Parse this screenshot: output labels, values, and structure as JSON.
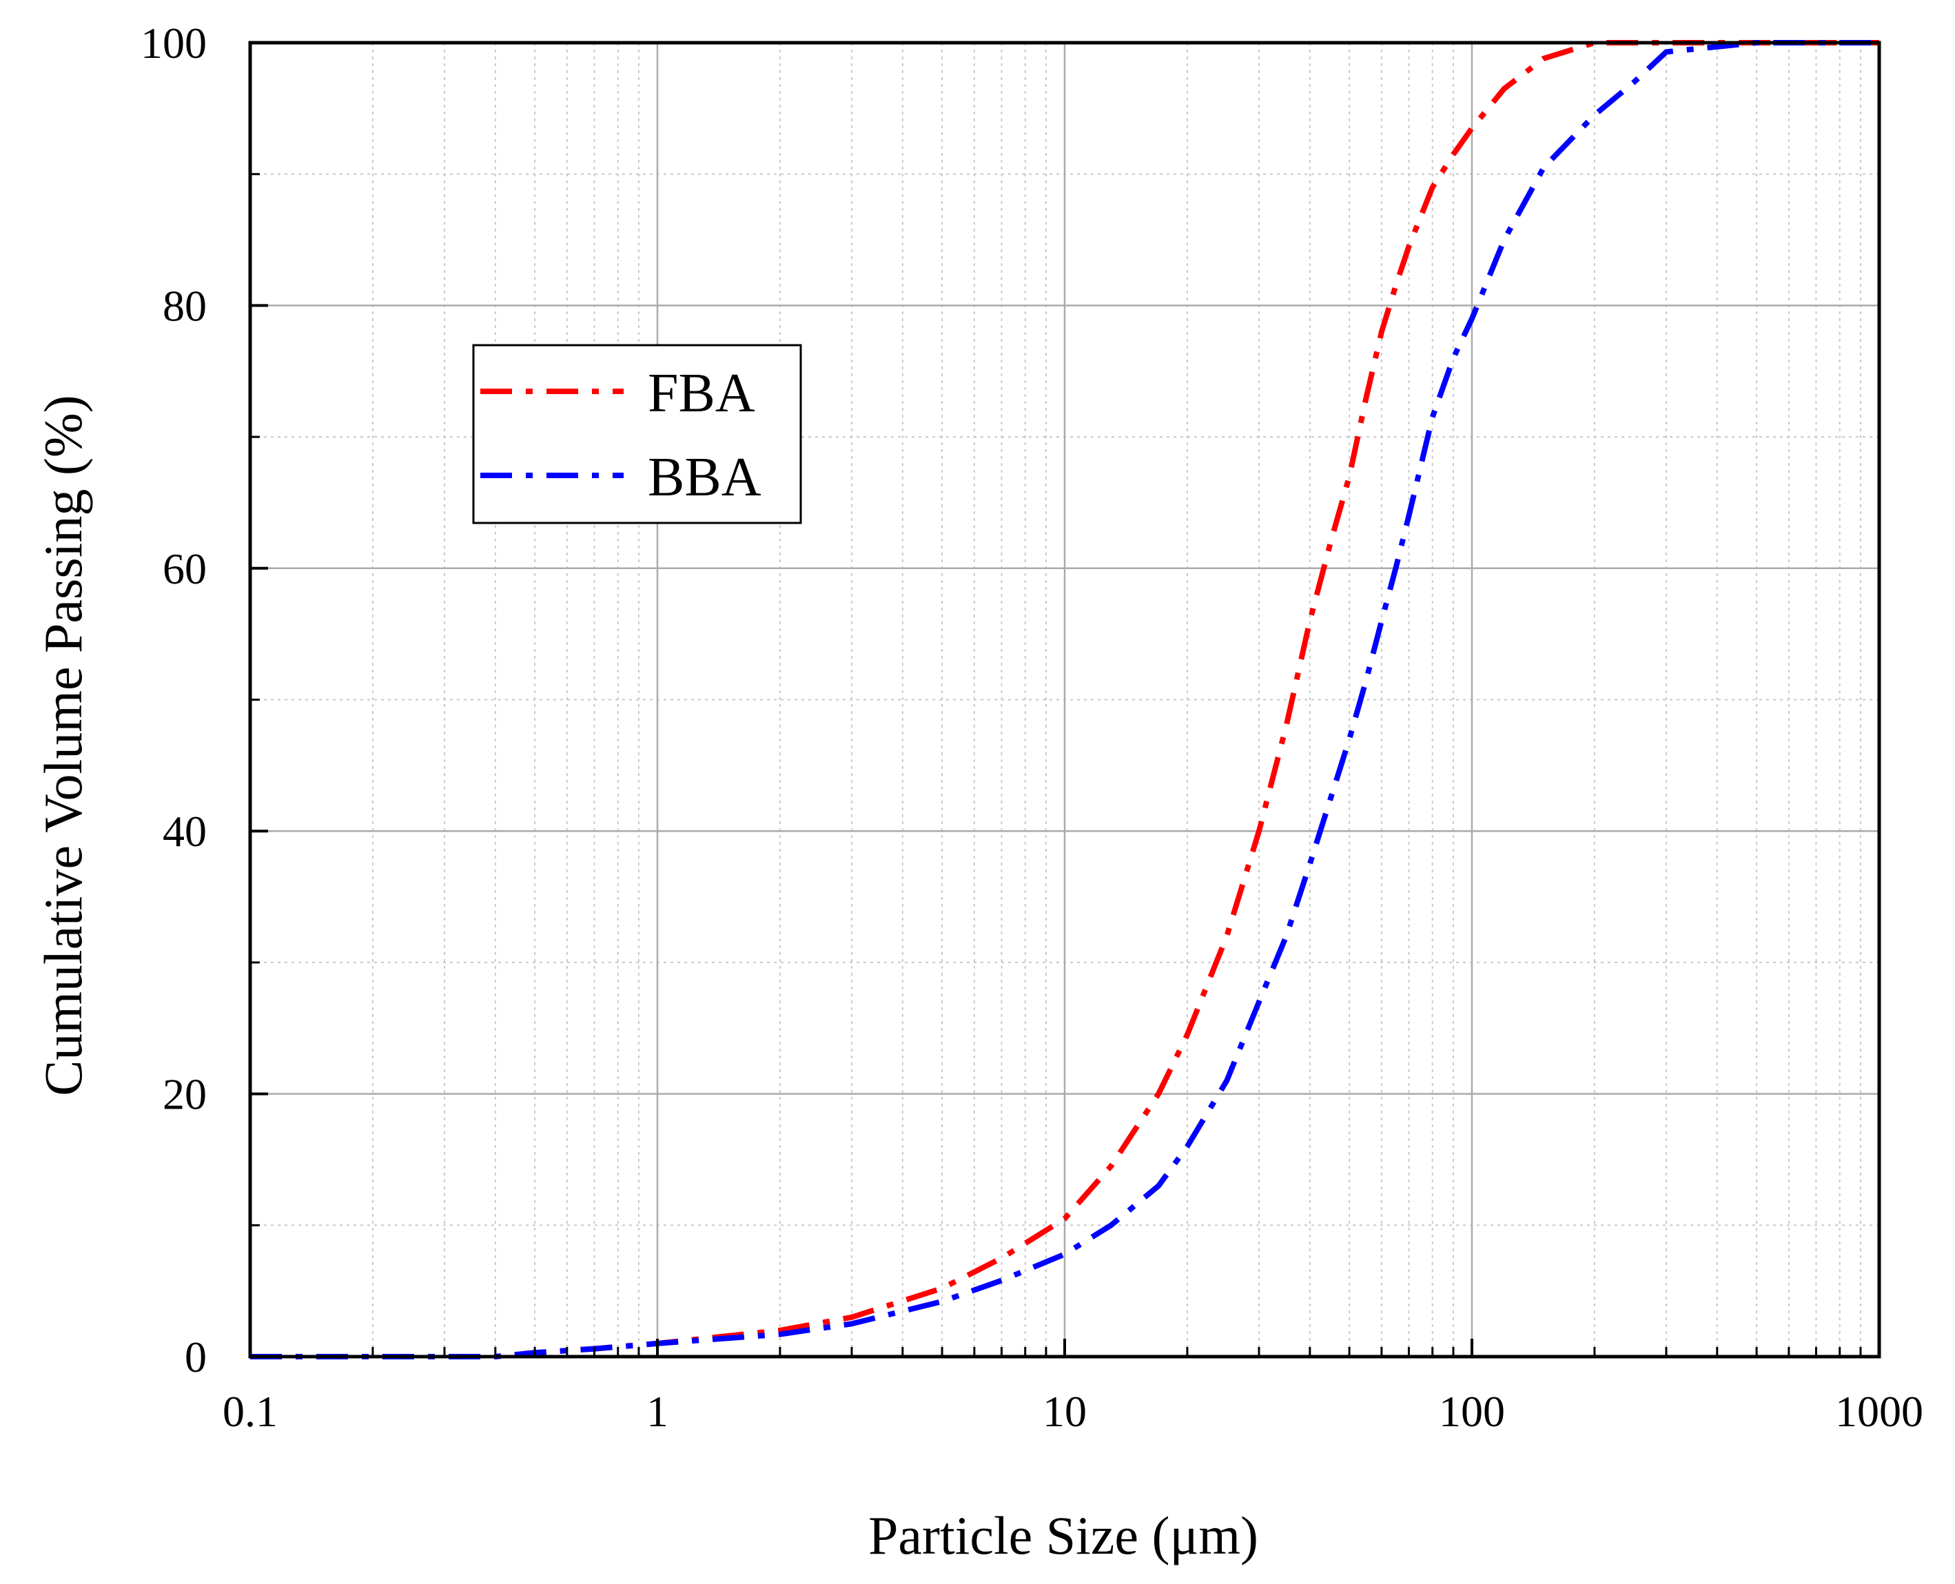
{
  "chart_data": {
    "type": "line",
    "title": "",
    "xlabel": "Particle Size (μm)",
    "ylabel": "Cumulative Volume Passing (%)",
    "xscale": "log",
    "xlim": [
      0.1,
      1000
    ],
    "ylim": [
      0,
      100
    ],
    "xticks": [
      0.1,
      1,
      10,
      100,
      1000
    ],
    "xtick_labels": [
      "0.1",
      "1",
      "10",
      "100",
      "1000"
    ],
    "yticks": [
      0,
      20,
      40,
      60,
      80,
      100
    ],
    "ytick_labels": [
      "0",
      "20",
      "40",
      "60",
      "80",
      "100"
    ],
    "grid": true,
    "legend_position": "upper-left",
    "series": [
      {
        "name": "FBA",
        "color": "#ff0000",
        "line_style": "dash-dot",
        "x": [
          0.1,
          0.3,
          0.4,
          0.5,
          0.7,
          1,
          2,
          3,
          5,
          7,
          10,
          13,
          17,
          20,
          25,
          30,
          35,
          40,
          45,
          50,
          55,
          60,
          65,
          70,
          80,
          90,
          100,
          120,
          150,
          200,
          300,
          500,
          1000
        ],
        "values": [
          0,
          0,
          0,
          0.3,
          0.6,
          1.0,
          2.0,
          3.0,
          5.2,
          7.5,
          10.5,
          14.5,
          20.0,
          24.5,
          32.0,
          40.0,
          48.0,
          56.0,
          62.0,
          67.0,
          73.0,
          78.0,
          81.5,
          84.5,
          89.0,
          91.5,
          93.5,
          96.5,
          98.8,
          100,
          100,
          100,
          100
        ]
      },
      {
        "name": "BBA",
        "color": "#0000ff",
        "line_style": "dash-dot",
        "x": [
          0.1,
          0.3,
          0.4,
          0.5,
          0.7,
          1,
          2,
          3,
          5,
          7,
          10,
          13,
          17,
          20,
          25,
          30,
          35,
          40,
          45,
          50,
          55,
          60,
          65,
          70,
          80,
          90,
          100,
          120,
          150,
          200,
          250,
          300,
          500,
          1000
        ],
        "values": [
          0,
          0,
          0,
          0.3,
          0.6,
          1.0,
          1.7,
          2.5,
          4.2,
          5.8,
          7.8,
          10.0,
          13.0,
          16.0,
          21.0,
          27.0,
          32.0,
          37.5,
          42.5,
          47.0,
          51.5,
          56.0,
          60.0,
          64.0,
          71.5,
          76.0,
          79.0,
          85.0,
          90.5,
          94.5,
          97.0,
          99.3,
          100,
          100
        ]
      }
    ]
  }
}
